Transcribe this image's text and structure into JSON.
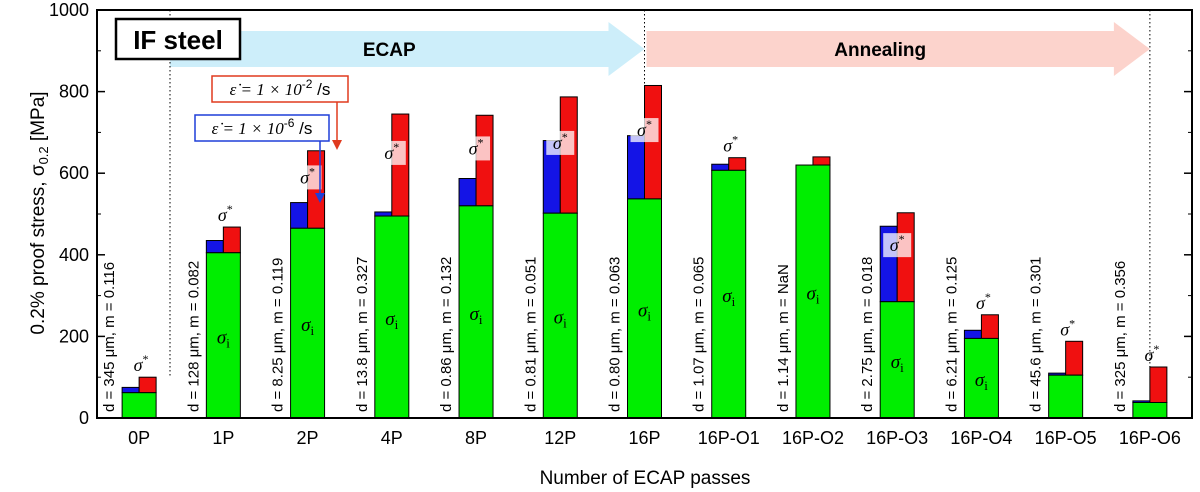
{
  "chart_data": {
    "type": "bar",
    "badge": "IF steel",
    "xlabel": "Number of ECAP passes",
    "ylabel": "0.2% proof stress, σ",
    "ylabel_sub": "0.2",
    "ylabel_unit": " [MPa]",
    "ylim": [
      0,
      1000
    ],
    "yticks": [
      0,
      200,
      400,
      600,
      800,
      1000
    ],
    "grid": false,
    "categories": [
      "0P",
      "1P",
      "2P",
      "4P",
      "8P",
      "12P",
      "16P",
      "16P-O1",
      "16P-O2",
      "16P-O3",
      "16P-O4",
      "16P-O5",
      "16P-O6"
    ],
    "sigma_i": [
      62,
      405,
      465,
      495,
      520,
      502,
      537,
      607,
      620,
      285,
      195,
      105,
      38
    ],
    "low_rate_total": [
      75,
      435,
      528,
      505,
      587,
      680,
      692,
      622,
      620,
      470,
      215,
      110,
      42
    ],
    "high_rate_total": [
      100,
      468,
      655,
      745,
      742,
      787,
      815,
      638,
      640,
      503,
      253,
      188,
      125
    ],
    "annotations": [
      "d = 345 μm, m = 0.116",
      "d = 128 μm, m = 0.082",
      "d = 8.25 μm, m = 0.119",
      "d = 13.8 μm, m = 0.327",
      "d = 0.86 μm, m = 0.132",
      "d = 0.81 μm, m = 0.051",
      "d = 0.80 μm, m = 0.063",
      "d = 1.07 μm, m = 0.065",
      "d = 1.14 μm, m = NaN",
      "d = 2.75 μm, m = 0.018",
      "d = 6.21 μm, m = 0.125",
      "d = 45.6 μm, m = 0.301",
      "d = 325 μm, m = 0.356"
    ],
    "process_arrows": [
      {
        "label": "ECAP",
        "from": "0P",
        "to": "16P",
        "color": "#cdeefa"
      },
      {
        "label": "Annealing",
        "from": "16P",
        "to": "16P-O6",
        "color": "#fcd3cc"
      }
    ],
    "rate_labels": {
      "high": {
        "text": "ε̇ = 1 × 10",
        "exp": "-2",
        "unit": " /s",
        "color": "#e03a1e"
      },
      "low": {
        "text": "ε̇ = 1 × 10",
        "exp": "-6",
        "unit": " /s",
        "color": "#1f3fd8"
      }
    },
    "sigma_star_label": "σ*",
    "sigma_i_label": "σi",
    "colors": {
      "sigma_i": "#00ee00",
      "low_rate": "#1414e6",
      "high_rate": "#f01010"
    }
  }
}
